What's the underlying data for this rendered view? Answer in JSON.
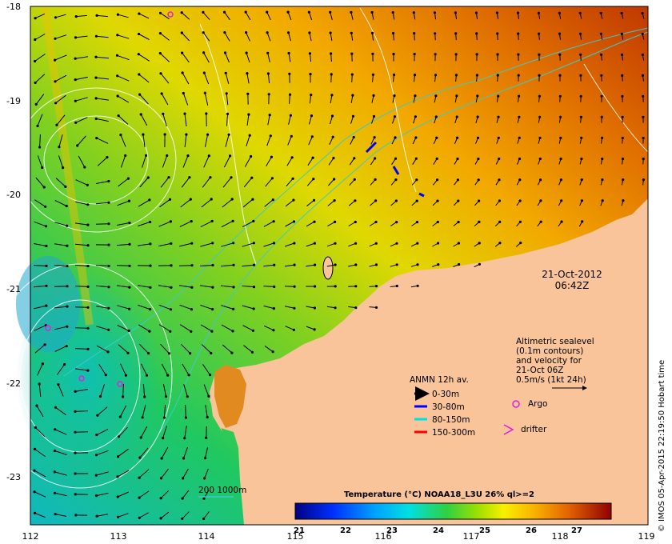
{
  "map": {
    "date": "21-Oct-2012",
    "time": "06:42Z",
    "lon_ticks": [
      "112",
      "113",
      "114",
      "115",
      "116",
      "117",
      "118",
      "119"
    ],
    "lat_ticks": [
      "-18",
      "-19",
      "-20",
      "-21",
      "-22",
      "-23"
    ],
    "credit": "© IMOS 05-Apr-2015 22:19:50 Hobart time",
    "altimetry_note": [
      "Altimetric sealevel",
      "(0.1m contours)",
      "and velocity for",
      "21-Oct 06Z",
      "0.5m/s (1kt 24h)"
    ],
    "anmn_title": "ANMN 12h av.",
    "anmn_legend": [
      {
        "label": "0-30m",
        "color": "#000000"
      },
      {
        "label": "30-80m",
        "color": "#0000ff"
      },
      {
        "label": "80-150m",
        "color": "#00e0e0"
      },
      {
        "label": "150-300m",
        "color": "#ff0000"
      }
    ],
    "argo_label": "Argo",
    "drifter_label": "drifter",
    "isobath_label": "200  1000m",
    "colorbar_title": "Temperature (°C) NOAA18_L3U 26% ql>=2",
    "colorbar_ticks": [
      "21",
      "22",
      "23",
      "24",
      "25",
      "26",
      "27"
    ],
    "colors": {
      "land": "#f9c49a",
      "isobath": "#40c8c8",
      "argo": "#e020e0"
    }
  }
}
